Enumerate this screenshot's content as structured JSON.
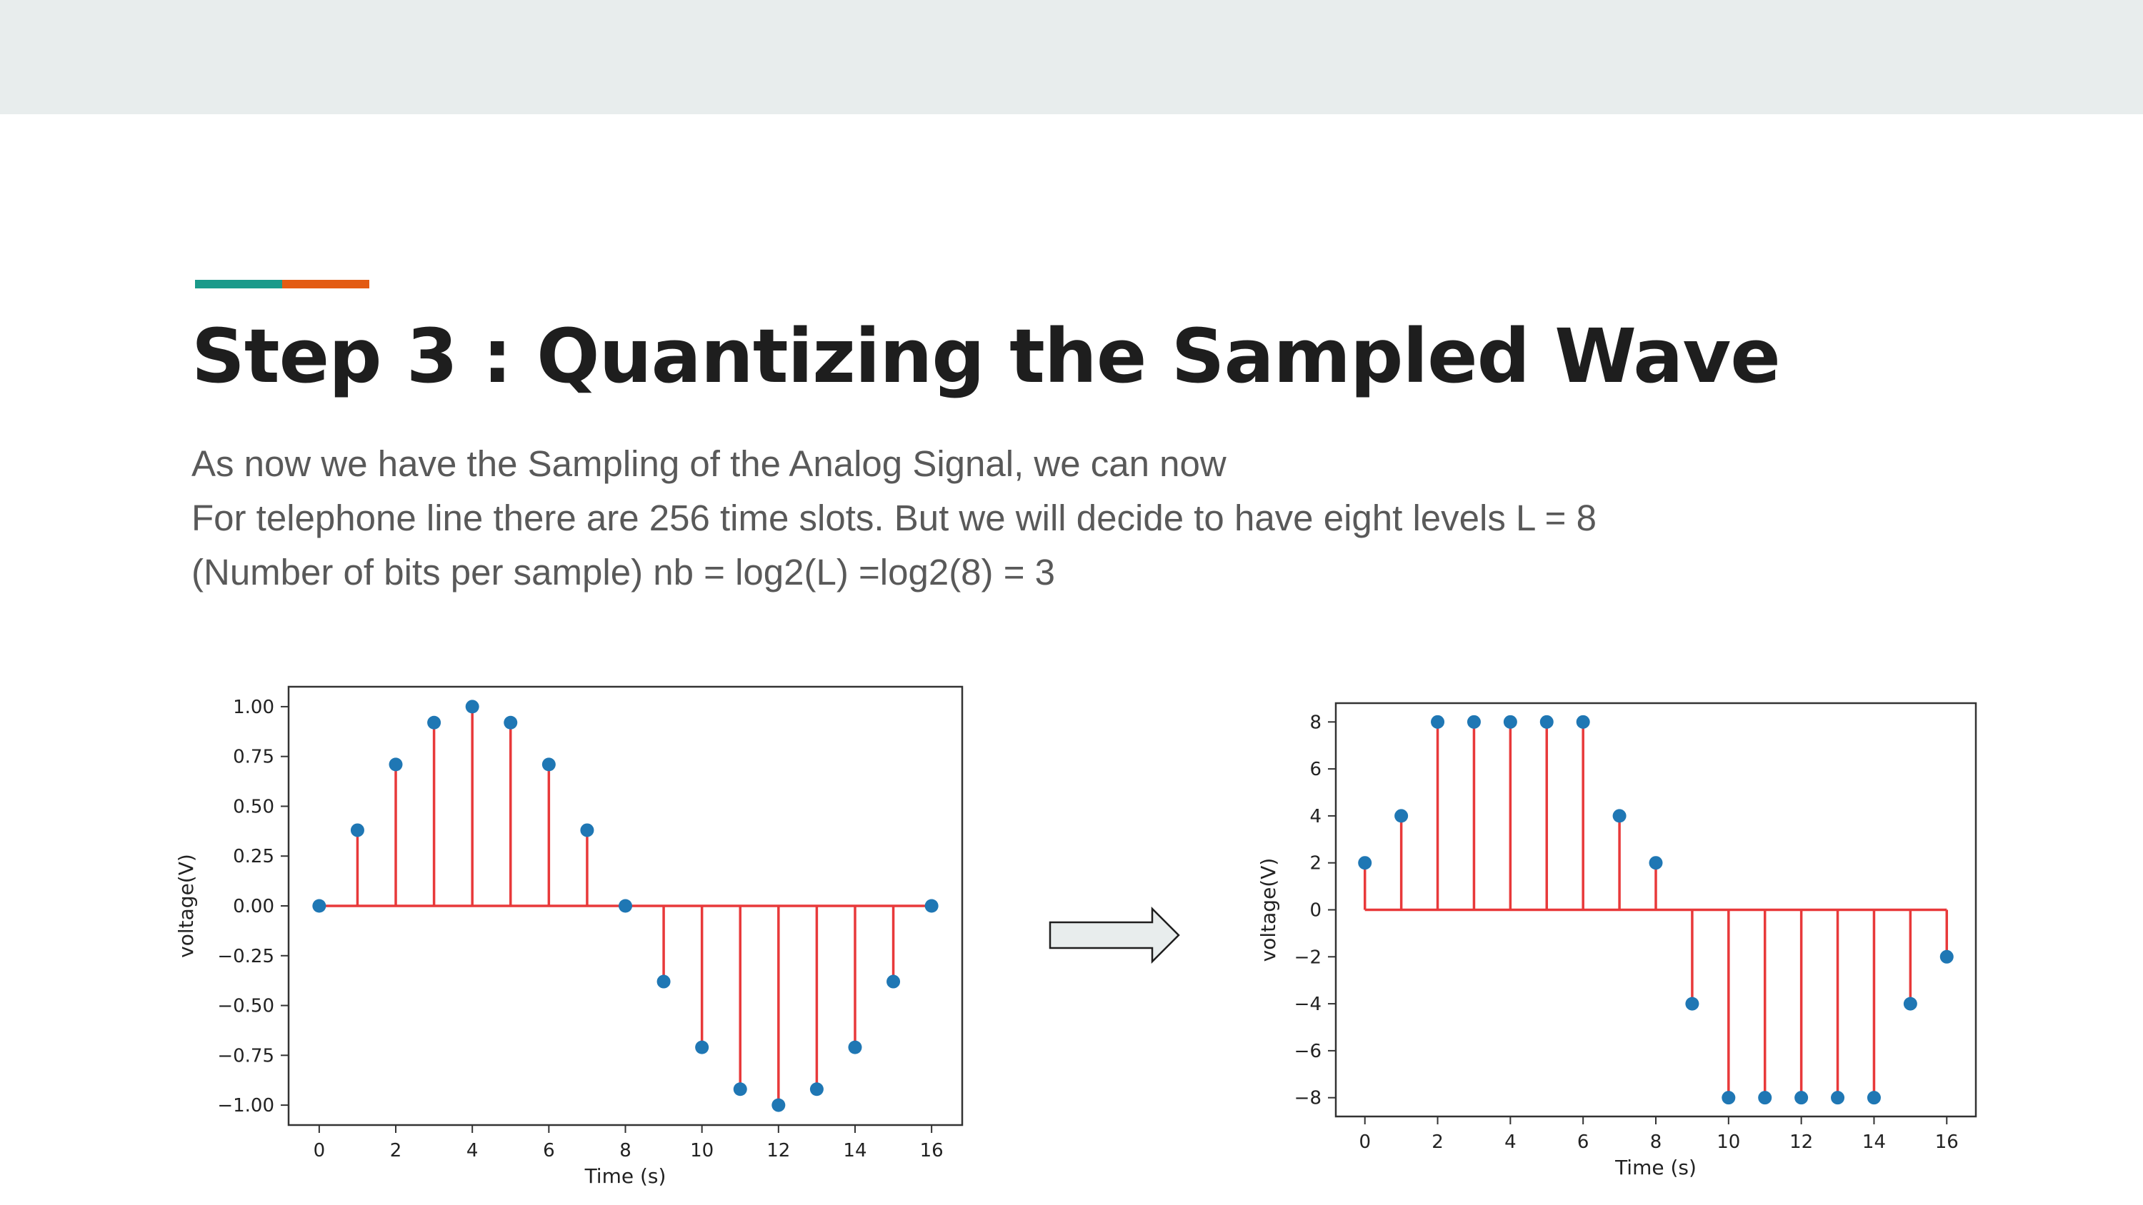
{
  "slide": {
    "title": "Step 3 : Quantizing the Sampled Wave",
    "lines": [
      "As now we have the Sampling of the Analog Signal, we can now",
      "For telephone line there are 256 time slots. But  we will decide to have eight levels  L = 8",
      "(Number of bits per sample) nb = log2(L) =log2(8) = 3"
    ],
    "colors": {
      "top_band": "#e8eded",
      "accent_teal": "#1a9a8a",
      "accent_orange": "#e35b12",
      "stem": "#e8393a",
      "marker": "#1f77b4"
    },
    "arrow_icon": "right-arrow-icon"
  },
  "chart_data": [
    {
      "type": "stem",
      "x": [
        0,
        1,
        2,
        3,
        4,
        5,
        6,
        7,
        8,
        9,
        10,
        11,
        12,
        13,
        14,
        15,
        16
      ],
      "values": [
        0,
        0.38,
        0.71,
        0.92,
        1.0,
        0.92,
        0.71,
        0.38,
        0,
        -0.38,
        -0.71,
        -0.92,
        -1.0,
        -0.92,
        -0.71,
        -0.38,
        0
      ],
      "xlabel": "Time (s)",
      "ylabel": "voltage(V)",
      "xlim": [
        -0.8,
        16.8
      ],
      "ylim": [
        -1.1,
        1.1
      ],
      "xticks": [
        0,
        2,
        4,
        6,
        8,
        10,
        12,
        14,
        16
      ],
      "xtick_labels": [
        "0",
        "2",
        "4",
        "6",
        "8",
        "10",
        "12",
        "14",
        "16"
      ],
      "yticks": [
        1.0,
        0.75,
        0.5,
        0.25,
        0,
        -0.25,
        -0.5,
        -0.75,
        -1.0
      ],
      "ytick_labels": [
        "1.00",
        "0.75",
        "0.50",
        "0.25",
        "0.00",
        "−0.25",
        "−0.50",
        "−0.75",
        "−1.00"
      ],
      "grid": false
    },
    {
      "type": "stem",
      "x": [
        0,
        1,
        2,
        3,
        4,
        5,
        6,
        7,
        8,
        9,
        10,
        11,
        12,
        13,
        14,
        15,
        16
      ],
      "values": [
        2,
        4,
        8,
        8,
        8,
        8,
        8,
        4,
        2,
        -4,
        -8,
        -8,
        -8,
        -8,
        -8,
        -4,
        -2
      ],
      "xlabel": "Time (s)",
      "ylabel": "voltage(V)",
      "xlim": [
        -0.8,
        16.8
      ],
      "ylim": [
        -8.8,
        8.8
      ],
      "xticks": [
        0,
        2,
        4,
        6,
        8,
        10,
        12,
        14,
        16
      ],
      "xtick_labels": [
        "0",
        "2",
        "4",
        "6",
        "8",
        "10",
        "12",
        "14",
        "16"
      ],
      "yticks": [
        8,
        6,
        4,
        2,
        0,
        -2,
        -4,
        -6,
        -8
      ],
      "ytick_labels": [
        "8",
        "6",
        "4",
        "2",
        "0",
        "−2",
        "−4",
        "−6",
        "−8"
      ],
      "grid": false
    }
  ]
}
